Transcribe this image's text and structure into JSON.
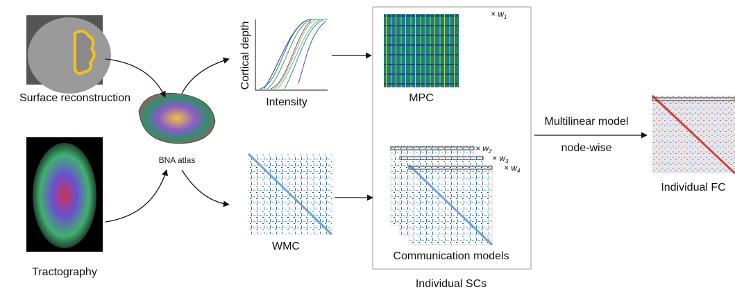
{
  "inputs": {
    "surface": "Surface reconstruction",
    "tractography": "Tractography",
    "atlas": "BNA atlas"
  },
  "mpc_plot": {
    "y_label": "Cortical depth",
    "x_label": "Intensity"
  },
  "matrices": {
    "mpc": "MPC",
    "wmc": "WMC",
    "communication": "Communication models",
    "group": "Individual SCs"
  },
  "weights": [
    {
      "prefix": "×",
      "var": "w",
      "sub": "1"
    },
    {
      "prefix": "×",
      "var": "w",
      "sub": "2"
    },
    {
      "prefix": "×",
      "var": "w",
      "sub": "3"
    },
    {
      "prefix": "×",
      "var": "w",
      "sub": "4"
    }
  ],
  "model": {
    "line1": "Multilinear model",
    "line2": "node-wise"
  },
  "output": "Individual FC"
}
